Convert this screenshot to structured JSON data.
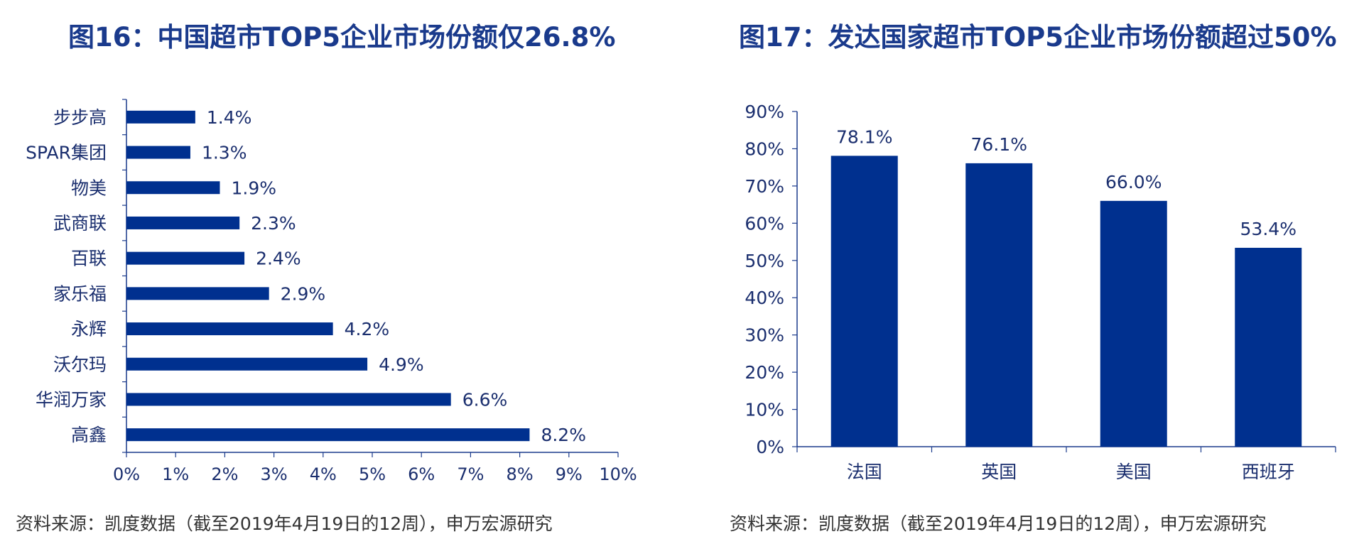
{
  "left_panel": {
    "title": "图16：中国超市TOP5企业市场份额仅26.8%",
    "source": "资料来源：凯度数据（截至2019年4月19日的12周），申万宏源研究"
  },
  "right_panel": {
    "title": "图17：发达国家超市TOP5企业市场份额超过50%",
    "source": "资料来源：凯度数据（截至2019年4月19日的12周），申万宏源研究"
  },
  "colors": {
    "bar": "#00308f",
    "axis": "#1a3a8c",
    "label": "#1a2e6e"
  },
  "chart_data": [
    {
      "type": "bar",
      "orientation": "horizontal",
      "title": "图16：中国超市TOP5企业市场份额仅26.8%",
      "categories": [
        "步步高",
        "SPAR集团",
        "物美",
        "武商联",
        "百联",
        "家乐福",
        "永辉",
        "沃尔玛",
        "华润万家",
        "高鑫"
      ],
      "values": [
        1.4,
        1.3,
        1.9,
        2.3,
        2.4,
        2.9,
        4.2,
        4.9,
        6.6,
        8.2
      ],
      "data_labels": [
        "1.4%",
        "1.3%",
        "1.9%",
        "2.3%",
        "2.4%",
        "2.9%",
        "4.2%",
        "4.9%",
        "6.6%",
        "8.2%"
      ],
      "xlim": [
        0,
        10
      ],
      "x_ticks": [
        "0%",
        "1%",
        "2%",
        "3%",
        "4%",
        "5%",
        "6%",
        "7%",
        "8%",
        "9%",
        "10%"
      ],
      "xlabel": "",
      "ylabel": "",
      "grid": false,
      "legend": "none"
    },
    {
      "type": "bar",
      "orientation": "vertical",
      "title": "图17：发达国家超市TOP5企业市场份额超过50%",
      "categories": [
        "法国",
        "英国",
        "美国",
        "西班牙"
      ],
      "values": [
        78.1,
        76.1,
        66.0,
        53.4
      ],
      "data_labels": [
        "78.1%",
        "76.1%",
        "66.0%",
        "53.4%"
      ],
      "ylim": [
        0,
        90
      ],
      "y_ticks": [
        "0%",
        "10%",
        "20%",
        "30%",
        "40%",
        "50%",
        "60%",
        "70%",
        "80%",
        "90%"
      ],
      "xlabel": "",
      "ylabel": "",
      "grid": false,
      "legend": "none"
    }
  ]
}
